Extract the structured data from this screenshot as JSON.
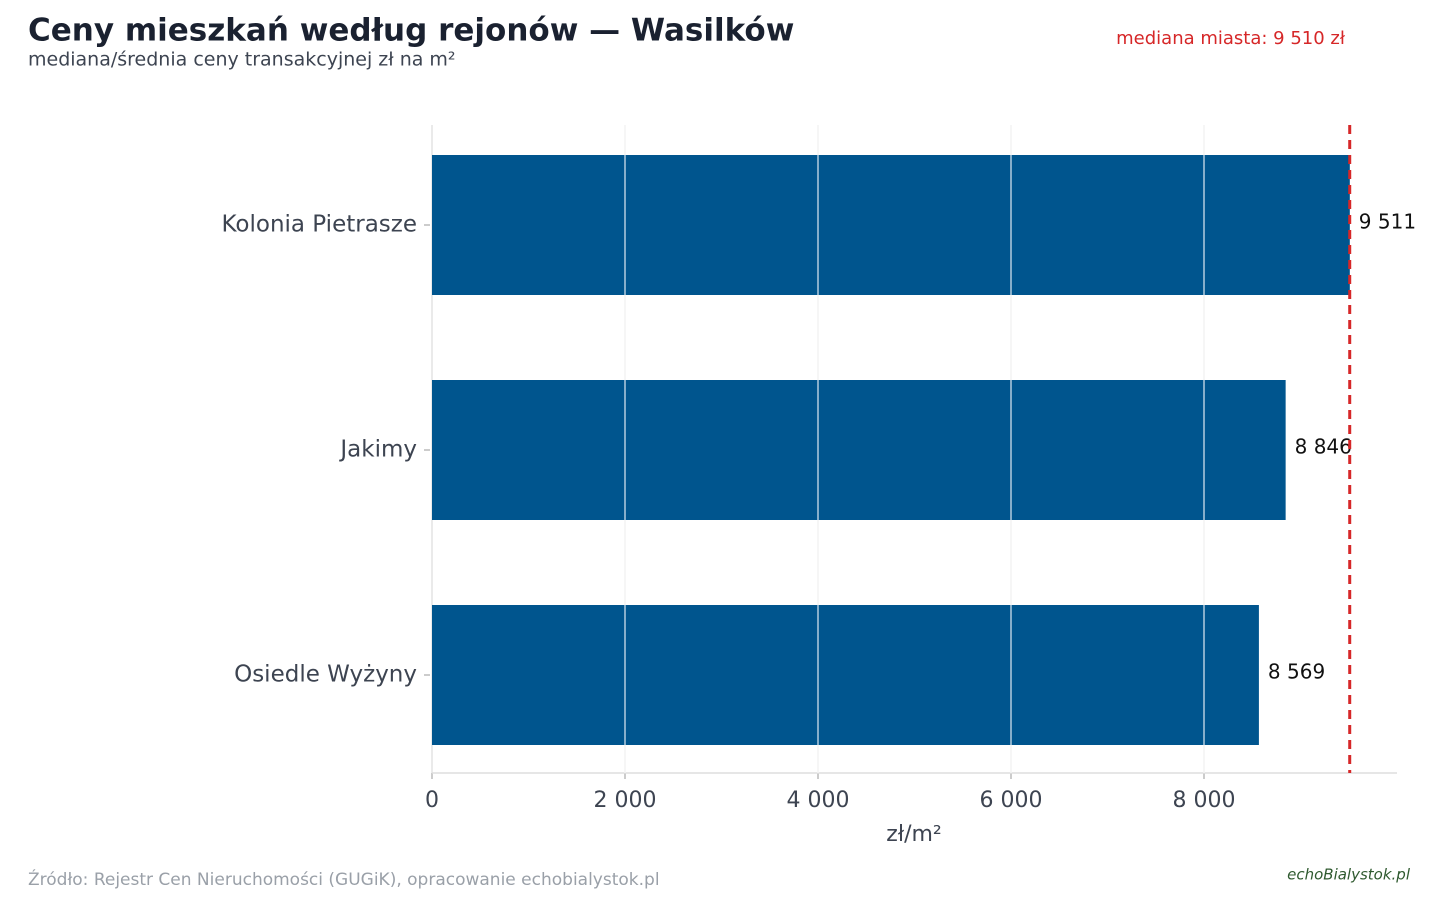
{
  "chart_data": {
    "type": "barh",
    "title": "Ceny mieszkań według rejonów — Wasilków",
    "subtitle": "mediana/średnia ceny transakcyjnej zł na m²",
    "categories": [
      "Kolonia Pietrasze",
      "Jakimy",
      "Osiedle Wyżyny"
    ],
    "values": [
      9511,
      8846,
      8569
    ],
    "value_labels": [
      "9 511",
      "8 846",
      "8 569"
    ],
    "color": "#00558e",
    "xlim": [
      0,
      10000
    ],
    "xticks": [
      0,
      {
        "value": 2000,
        "label": "2 000"
      },
      {
        "value": 4000,
        "label": "4 000"
      },
      {
        "value": 6000,
        "label": "6 000"
      },
      {
        "value": 8000,
        "label": "8 000"
      }
    ],
    "xlabel": "zł/m²",
    "grid": true,
    "median": {
      "value": 9510,
      "label": "mediana miasta: 9 510 zł",
      "color": "#d62728"
    },
    "source": "Źródło: Rejestr Cen Nieruchomości (GUGiK), opracowanie echobialystok.pl",
    "logo": "echoBialystok.pl"
  }
}
